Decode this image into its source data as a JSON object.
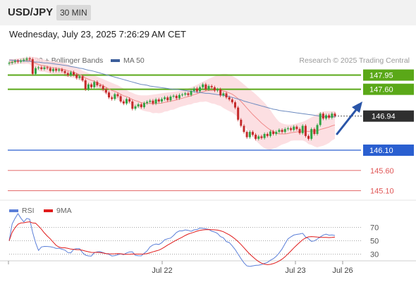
{
  "header": {
    "symbol": "USD/JPY",
    "timeframe": "30 MIN"
  },
  "datetime": "Wednesday, July 23, 2025 7:26:29 AM CET",
  "legend": [
    {
      "label": "MA 20 + Bollinger Bands",
      "color": "#f08a8a"
    },
    {
      "label": "MA 50",
      "color": "#3d5f9c"
    }
  ],
  "research": "Research © 2025 Trading Central",
  "rsi_legend": [
    {
      "label": "RSI",
      "color": "#5b7fd8"
    },
    {
      "label": "9MA",
      "color": "#e01b1b"
    }
  ],
  "colors": {
    "resistance": "#5aa818",
    "pivot": "#2a5fd0",
    "support": "#e05757",
    "up": "#2fa343",
    "down": "#c52b2b",
    "last": "#2f2f2f",
    "arrow": "#2a55a8"
  },
  "chart_data": [
    {
      "type": "candlestick",
      "ylim": [
        144.85,
        148.15
      ],
      "levels": [
        {
          "value": 147.95,
          "label": "147.95",
          "kind": "resistance"
        },
        {
          "value": 147.6,
          "label": "147.60",
          "kind": "resistance"
        },
        {
          "value": 146.1,
          "label": "146.10",
          "kind": "pivot"
        },
        {
          "value": 145.6,
          "label": "145.60",
          "kind": "support"
        },
        {
          "value": 145.1,
          "label": "145.10",
          "kind": "support"
        }
      ],
      "last_price": {
        "value": 146.94,
        "label": "146.94"
      },
      "x_ticks": [
        "Jul 22",
        "Jul 23",
        "Jul 26"
      ],
      "close": [
        148.25,
        148.27,
        148.3,
        148.28,
        148.31,
        148.33,
        148.36,
        148.34,
        147.98,
        148.12,
        148.14,
        148.1,
        148.14,
        148.12,
        148.05,
        148.1,
        148.06,
        148.09,
        148.05,
        148.0,
        147.95,
        148.02,
        147.96,
        147.88,
        147.92,
        147.82,
        147.6,
        147.72,
        147.65,
        147.78,
        147.7,
        147.68,
        147.6,
        147.52,
        147.4,
        147.36,
        147.48,
        147.43,
        147.3,
        147.25,
        147.36,
        147.3,
        147.12,
        147.18,
        147.23,
        147.16,
        147.26,
        147.29,
        147.32,
        147.25,
        147.35,
        147.3,
        147.36,
        147.4,
        147.33,
        147.42,
        147.44,
        147.38,
        147.46,
        147.47,
        147.5,
        147.46,
        147.56,
        147.62,
        147.55,
        147.65,
        147.72,
        147.6,
        147.68,
        147.65,
        147.57,
        147.6,
        147.45,
        147.5,
        147.4,
        147.35,
        147.28,
        147.15,
        146.85,
        146.7,
        146.55,
        146.42,
        146.55,
        146.48,
        146.38,
        146.44,
        146.4,
        146.5,
        146.45,
        146.56,
        146.5,
        146.55,
        146.6,
        146.55,
        146.62,
        146.64,
        146.6,
        146.68,
        146.62,
        146.52,
        146.7,
        146.45,
        146.38,
        146.62,
        146.5,
        146.72,
        147.0,
        146.88,
        146.96,
        146.9,
        147.0,
        146.94
      ],
      "ma20": [
        148.26,
        148.27,
        148.28,
        148.29,
        148.3,
        148.3,
        148.31,
        148.31,
        148.27,
        148.24,
        148.21,
        148.19,
        148.18,
        148.16,
        148.14,
        148.13,
        148.12,
        148.11,
        148.1,
        148.08,
        148.06,
        148.04,
        148.02,
        147.99,
        147.96,
        147.93,
        147.88,
        147.85,
        147.82,
        147.8,
        147.76,
        147.73,
        147.69,
        147.65,
        147.61,
        147.57,
        147.55,
        147.52,
        147.48,
        147.44,
        147.42,
        147.39,
        147.35,
        147.32,
        147.3,
        147.27,
        147.26,
        147.25,
        147.25,
        147.24,
        147.25,
        147.25,
        147.26,
        147.28,
        147.29,
        147.31,
        147.32,
        147.34,
        147.36,
        147.38,
        147.4,
        147.42,
        147.44,
        147.47,
        147.49,
        147.52,
        147.54,
        147.56,
        147.57,
        147.57,
        147.58,
        147.58,
        147.58,
        147.56,
        147.54,
        147.51,
        147.48,
        147.43,
        147.37,
        147.3,
        147.22,
        147.14,
        147.06,
        146.98,
        146.91,
        146.84,
        146.77,
        146.71,
        146.65,
        146.6,
        146.56,
        146.52,
        146.5,
        146.5,
        146.5,
        146.51,
        146.53,
        146.54,
        146.55,
        146.56,
        146.57,
        146.57,
        146.56,
        146.57,
        146.57,
        146.58,
        146.61,
        146.63,
        146.65,
        146.67,
        146.7,
        146.72
      ],
      "upper_band": [
        148.34,
        148.34,
        148.35,
        148.36,
        148.37,
        148.38,
        148.39,
        148.4,
        148.4,
        148.39,
        148.37,
        148.35,
        148.33,
        148.31,
        148.3,
        148.29,
        148.28,
        148.27,
        148.26,
        148.24,
        148.22,
        148.19,
        148.16,
        148.13,
        148.1,
        148.06,
        148.03,
        148.0,
        147.97,
        147.94,
        147.91,
        147.88,
        147.85,
        147.82,
        147.79,
        147.76,
        147.73,
        147.7,
        147.66,
        147.62,
        147.58,
        147.54,
        147.51,
        147.48,
        147.46,
        147.45,
        147.45,
        147.45,
        147.46,
        147.47,
        147.48,
        147.49,
        147.5,
        147.51,
        147.52,
        147.53,
        147.54,
        147.55,
        147.56,
        147.58,
        147.6,
        147.62,
        147.65,
        147.68,
        147.71,
        147.75,
        147.79,
        147.82,
        147.86,
        147.89,
        147.92,
        147.95,
        147.97,
        147.98,
        147.98,
        147.96,
        147.93,
        147.89,
        147.84,
        147.78,
        147.72,
        147.66,
        147.6,
        147.54,
        147.48,
        147.41,
        147.34,
        147.27,
        147.18,
        147.09,
        146.98,
        146.88,
        146.8,
        146.76,
        146.74,
        146.73,
        146.73,
        146.74,
        146.76,
        146.78,
        146.8,
        146.83,
        146.87,
        146.91,
        146.95,
        146.99,
        147.03,
        147.05,
        147.06,
        147.06,
        147.06,
        147.06
      ],
      "lower_band": [
        148.18,
        148.2,
        148.21,
        148.22,
        148.23,
        148.22,
        148.23,
        148.22,
        148.14,
        148.09,
        148.05,
        148.03,
        148.03,
        148.01,
        147.98,
        147.97,
        147.96,
        147.95,
        147.94,
        147.92,
        147.9,
        147.89,
        147.88,
        147.85,
        147.82,
        147.8,
        147.73,
        147.7,
        147.67,
        147.66,
        147.61,
        147.58,
        147.53,
        147.48,
        147.43,
        147.38,
        147.37,
        147.34,
        147.3,
        147.26,
        147.26,
        147.24,
        147.19,
        147.16,
        147.14,
        147.09,
        147.07,
        147.05,
        147.04,
        147.01,
        147.02,
        147.01,
        147.02,
        147.05,
        147.06,
        147.09,
        147.1,
        147.13,
        147.16,
        147.18,
        147.2,
        147.22,
        147.23,
        147.26,
        147.27,
        147.29,
        147.29,
        147.3,
        147.28,
        147.25,
        147.24,
        147.21,
        147.19,
        147.14,
        147.1,
        147.06,
        147.03,
        146.97,
        146.9,
        146.82,
        146.72,
        146.62,
        146.52,
        146.42,
        146.34,
        146.27,
        146.2,
        146.15,
        146.12,
        146.11,
        146.14,
        146.16,
        146.2,
        146.24,
        146.26,
        146.29,
        146.33,
        146.34,
        146.34,
        146.34,
        146.34,
        146.31,
        146.25,
        146.23,
        146.19,
        146.17,
        146.19,
        146.21,
        146.24,
        146.28,
        146.34,
        146.38
      ],
      "ma50": [
        148.32,
        148.32,
        148.31,
        148.31,
        148.3,
        148.3,
        148.29,
        148.29,
        148.28,
        148.27,
        148.27,
        148.26,
        148.25,
        148.25,
        148.24,
        148.23,
        148.22,
        148.21,
        148.2,
        148.19,
        148.18,
        148.16,
        148.15,
        148.14,
        148.12,
        148.11,
        148.09,
        148.07,
        148.06,
        148.04,
        148.02,
        148.0,
        147.98,
        147.96,
        147.94,
        147.92,
        147.9,
        147.88,
        147.86,
        147.84,
        147.82,
        147.8,
        147.78,
        147.76,
        147.74,
        147.72,
        147.71,
        147.7,
        147.68,
        147.67,
        147.66,
        147.65,
        147.64,
        147.63,
        147.62,
        147.61,
        147.6,
        147.6,
        147.59,
        147.58,
        147.57,
        147.56,
        147.55,
        147.54,
        147.53,
        147.52,
        147.51,
        147.5,
        147.5,
        147.49,
        147.48,
        147.47,
        147.46,
        147.45,
        147.44,
        147.42,
        147.4,
        147.38,
        147.36,
        147.34,
        147.31,
        147.29,
        147.27,
        147.25,
        147.23,
        147.21,
        147.19,
        147.17,
        147.15,
        147.13,
        147.11,
        147.1,
        147.08,
        147.07,
        147.06,
        147.05,
        147.04,
        147.03,
        147.02,
        147.01,
        147.0,
        146.99,
        146.98,
        146.97,
        146.96,
        146.95,
        146.94,
        146.93,
        146.93,
        146.92,
        146.92,
        146.92
      ]
    },
    {
      "type": "line",
      "series": [
        {
          "name": "RSI"
        },
        {
          "name": "9MA"
        }
      ],
      "ylim": [
        20,
        80
      ],
      "y_ticks": [
        70,
        50,
        30
      ]
    }
  ]
}
